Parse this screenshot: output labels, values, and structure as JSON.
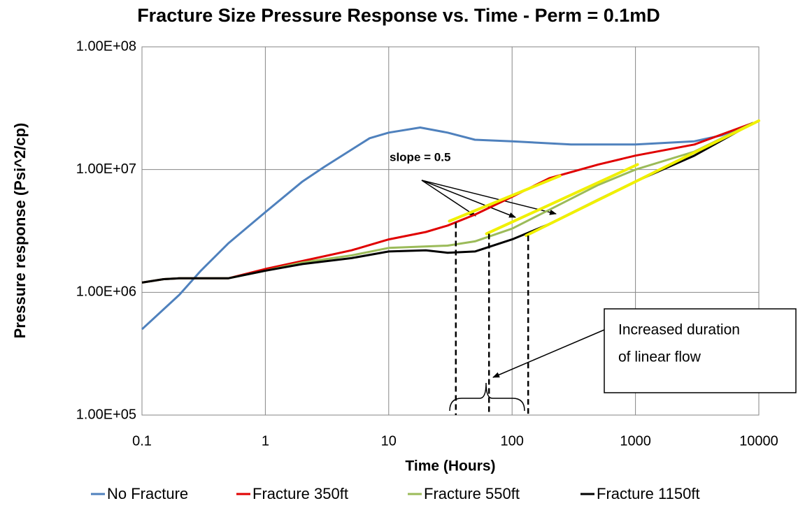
{
  "chart_data": {
    "type": "line",
    "title": "Fracture Size Pressure Response vs. Time - Perm = 0.1mD",
    "xlabel": "Time (Hours)",
    "ylabel": "Pressure response (Psi^2/cp)",
    "xscale": "log",
    "yscale": "log",
    "xlim": [
      0.1,
      10000
    ],
    "ylim": [
      100000,
      100000000
    ],
    "xticks": [
      0.1,
      1,
      10,
      100,
      1000,
      10000
    ],
    "yticks": [
      {
        "value": 100000,
        "label": "1.00E+05"
      },
      {
        "value": 1000000,
        "label": "1.00E+06"
      },
      {
        "value": 10000000,
        "label": "1.00E+07"
      },
      {
        "value": 100000000,
        "label": "1.00E+08"
      }
    ],
    "grid": true,
    "legend": "bottom",
    "series": [
      {
        "name": "No Fracture",
        "color": "#4f81bd",
        "x": [
          0.1,
          0.2,
          0.3,
          0.5,
          1,
          2,
          3,
          7,
          10,
          18,
          30,
          50,
          100,
          300,
          1000,
          3000,
          5000,
          9000
        ],
        "values": [
          500000,
          950000,
          1500000,
          2500000,
          4500000,
          8000000,
          10500000,
          18000000,
          20000000,
          22000000,
          20000000,
          17500000,
          17000000,
          16000000,
          16000000,
          17000000,
          19000000,
          24000000
        ]
      },
      {
        "name": "Fracture 350ft",
        "color": "#e00000",
        "x": [
          0.1,
          0.15,
          0.2,
          0.5,
          1,
          2,
          5,
          10,
          20,
          30,
          50,
          100,
          200,
          500,
          1000,
          3000,
          9000
        ],
        "values": [
          1200000,
          1280000,
          1300000,
          1300000,
          1550000,
          1800000,
          2200000,
          2700000,
          3100000,
          3500000,
          4300000,
          6000000,
          8500000,
          11000000,
          13000000,
          16000000,
          24000000
        ]
      },
      {
        "name": "Fracture 550ft",
        "color": "#9bbb59",
        "x": [
          0.1,
          0.15,
          0.2,
          0.5,
          1,
          2,
          5,
          10,
          30,
          50,
          100,
          200,
          500,
          1000,
          3000,
          9000
        ],
        "values": [
          1200000,
          1280000,
          1300000,
          1300000,
          1500000,
          1750000,
          2000000,
          2300000,
          2400000,
          2600000,
          3300000,
          4700000,
          7500000,
          10000000,
          14000000,
          24000000
        ]
      },
      {
        "name": "Fracture 1150ft",
        "color": "#000000",
        "x": [
          0.1,
          0.15,
          0.2,
          0.5,
          1,
          2,
          5,
          10,
          20,
          30,
          50,
          100,
          200,
          500,
          1000,
          3000,
          9000
        ],
        "values": [
          1200000,
          1280000,
          1300000,
          1300000,
          1500000,
          1700000,
          1900000,
          2150000,
          2200000,
          2100000,
          2150000,
          2700000,
          3600000,
          5700000,
          8000000,
          13000000,
          24000000
        ]
      }
    ],
    "slope_color": "#f0f000",
    "slope_lines": [
      {
        "x": [
          31,
          245
        ],
        "y": [
          3800000,
          8900000
        ]
      },
      {
        "x": [
          62,
          1040
        ],
        "y": [
          3000000,
          11000000
        ]
      },
      {
        "x": [
          130,
          10000
        ],
        "y": [
          2900000,
          25000000
        ]
      }
    ],
    "markers": [
      {
        "x": 35,
        "y": 3700000
      },
      {
        "x": 65,
        "y": 3000000
      },
      {
        "x": 135,
        "y": 2900000
      }
    ],
    "slope_label": "slope = 0.5",
    "annotation": [
      "Increased duration",
      "of linear flow"
    ]
  }
}
